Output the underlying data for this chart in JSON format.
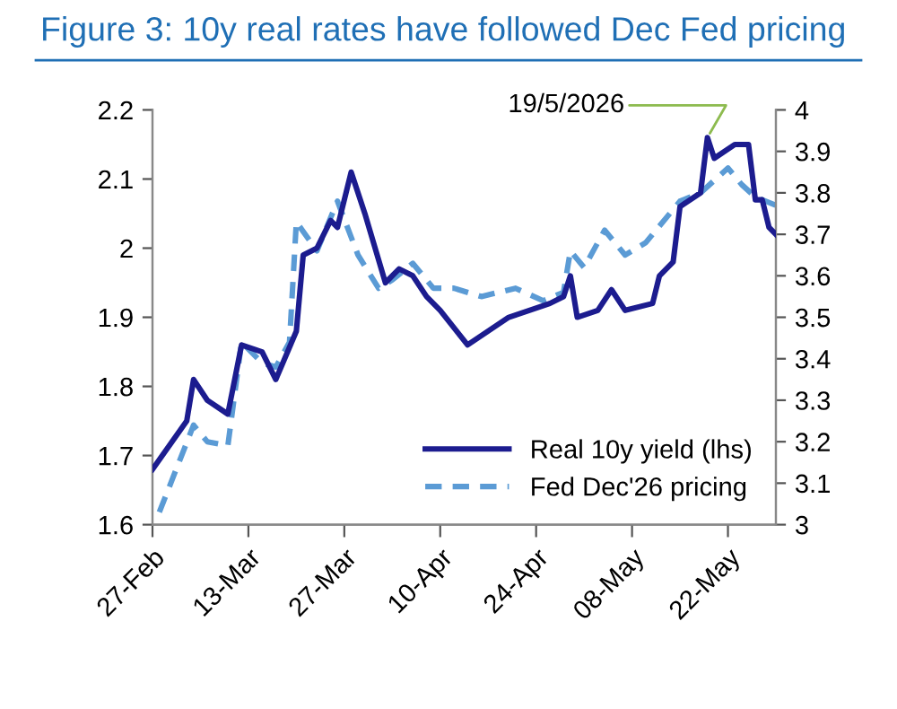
{
  "chart_data": {
    "type": "line",
    "title": "Figure 3: 10y real rates have followed Dec Fed pricing",
    "xlim": [
      "2026-02-27",
      "2026-05-29"
    ],
    "xticks": [
      {
        "value": "2026-02-27",
        "label": "27-Feb"
      },
      {
        "value": "2026-03-13",
        "label": "13-Mar"
      },
      {
        "value": "2026-03-27",
        "label": "27-Mar"
      },
      {
        "value": "2026-04-10",
        "label": "10-Apr"
      },
      {
        "value": "2026-04-24",
        "label": "24-Apr"
      },
      {
        "value": "2026-05-08",
        "label": "08-May"
      },
      {
        "value": "2026-05-22",
        "label": "22-May"
      }
    ],
    "ylim": [
      1.6,
      2.2
    ],
    "yticks": [
      1.6,
      1.7,
      1.8,
      1.9,
      2,
      2.1,
      2.2
    ],
    "y2lim": [
      3,
      4
    ],
    "y2ticks": [
      3,
      3.1,
      3.2,
      3.3,
      3.4,
      3.5,
      3.6,
      3.7,
      3.8,
      3.9,
      4
    ],
    "grid": false,
    "legend": "bottom right",
    "series": [
      {
        "name": "Real 10y yield (lhs)",
        "color": "#1c1c8f",
        "line_style": "solid",
        "x": [
          "2026-02-27",
          "2026-03-04",
          "2026-03-05",
          "2026-03-07",
          "2026-03-10",
          "2026-03-12",
          "2026-03-15",
          "2026-03-17",
          "2026-03-20",
          "2026-03-21",
          "2026-03-23",
          "2026-03-25",
          "2026-03-26",
          "2026-03-28",
          "2026-03-30",
          "2026-04-02",
          "2026-04-04",
          "2026-04-06",
          "2026-04-08",
          "2026-04-10",
          "2026-04-14",
          "2026-04-20",
          "2026-04-26",
          "2026-04-28",
          "2026-04-29",
          "2026-04-30",
          "2026-05-03",
          "2026-05-05",
          "2026-05-07",
          "2026-05-11",
          "2026-05-12",
          "2026-05-14",
          "2026-05-15",
          "2026-05-18",
          "2026-05-19",
          "2026-05-20",
          "2026-05-23",
          "2026-05-25",
          "2026-05-26",
          "2026-05-27",
          "2026-05-28",
          "2026-05-29"
        ],
        "values": [
          1.68,
          1.75,
          1.81,
          1.78,
          1.76,
          1.86,
          1.85,
          1.81,
          1.88,
          1.99,
          2.0,
          2.04,
          2.03,
          2.11,
          2.05,
          1.95,
          1.97,
          1.96,
          1.93,
          1.91,
          1.86,
          1.9,
          1.92,
          1.93,
          1.96,
          1.9,
          1.91,
          1.94,
          1.91,
          1.92,
          1.96,
          1.98,
          2.06,
          2.08,
          2.16,
          2.13,
          2.15,
          2.15,
          2.07,
          2.07,
          2.03,
          2.02
        ]
      },
      {
        "name": "Fed Dec'26 pricing",
        "color": "#5b9bd5",
        "line_style": "dashed",
        "axis": "y2",
        "x": [
          "2026-02-28",
          "2026-03-05",
          "2026-03-07",
          "2026-03-10",
          "2026-03-12",
          "2026-03-15",
          "2026-03-17",
          "2026-03-19",
          "2026-03-20",
          "2026-03-23",
          "2026-03-26",
          "2026-03-29",
          "2026-04-01",
          "2026-04-03",
          "2026-04-06",
          "2026-04-09",
          "2026-04-12",
          "2026-04-16",
          "2026-04-21",
          "2026-04-25",
          "2026-04-28",
          "2026-04-29",
          "2026-05-01",
          "2026-05-04",
          "2026-05-07",
          "2026-05-10",
          "2026-05-15",
          "2026-05-18",
          "2026-05-22",
          "2026-05-24",
          "2026-05-26",
          "2026-05-29"
        ],
        "values": [
          3.03,
          3.24,
          3.2,
          3.19,
          3.44,
          3.39,
          3.38,
          3.44,
          3.73,
          3.66,
          3.78,
          3.65,
          3.57,
          3.59,
          3.63,
          3.57,
          3.57,
          3.55,
          3.57,
          3.54,
          3.56,
          3.66,
          3.62,
          3.71,
          3.65,
          3.68,
          3.78,
          3.8,
          3.86,
          3.82,
          3.79,
          3.77
        ]
      }
    ],
    "annotations": [
      {
        "text": "19/5/2026",
        "x": "2026-05-19",
        "y": 2.16
      }
    ]
  }
}
